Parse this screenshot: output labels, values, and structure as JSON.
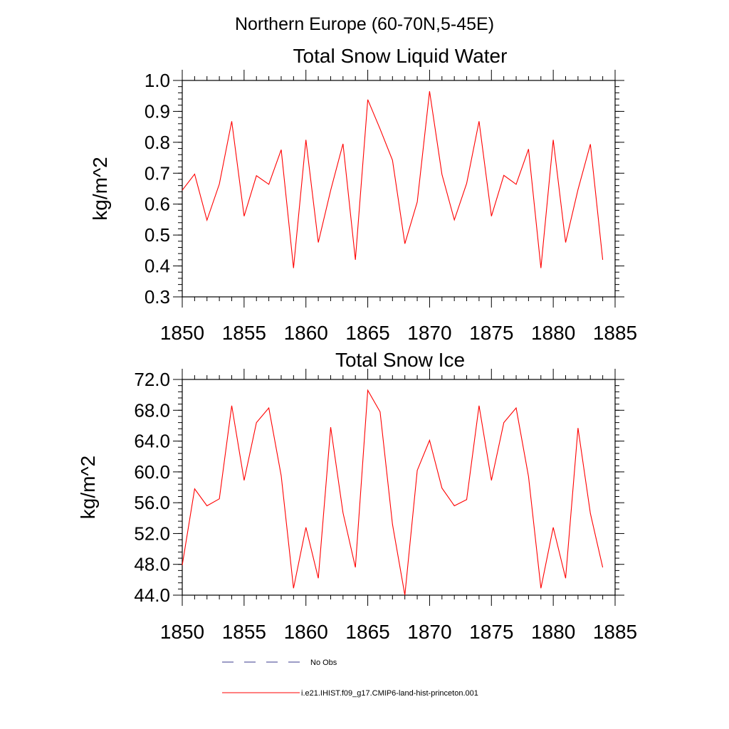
{
  "suptitle": "Northern Europe (60-70N,5-45E)",
  "colors": {
    "model": "#ff0000",
    "obs": "#3a3a8c"
  },
  "legend": [
    {
      "label": "No Obs",
      "style": "dashed",
      "color": "#3a3a8c"
    },
    {
      "label": "i.e21.IHIST.f09_g17.CMIP6-land-hist-princeton.001",
      "style": "solid",
      "color": "#ff0000"
    }
  ],
  "chart_data": [
    {
      "type": "line",
      "title": "Total Snow Liquid Water",
      "ylabel": "kg/m^2",
      "xlabel": "",
      "xlim": [
        1850,
        1885
      ],
      "ylim": [
        0.3,
        1.0
      ],
      "xticks": [
        1850,
        1855,
        1860,
        1865,
        1870,
        1875,
        1880,
        1885
      ],
      "xtick_labels": [
        "1850",
        "1855",
        "1860",
        "1865",
        "1870",
        "1875",
        "1880",
        "1885"
      ],
      "yticks": [
        0.3,
        0.4,
        0.5,
        0.6,
        0.7,
        0.8,
        0.9,
        1.0
      ],
      "ytick_labels": [
        "0.3",
        "0.4",
        "0.5",
        "0.6",
        "0.7",
        "0.8",
        "0.9",
        "1.0"
      ],
      "yminor_step": 0.02,
      "grid": false,
      "x": [
        1850,
        1851,
        1852,
        1853,
        1854,
        1855,
        1856,
        1857,
        1858,
        1859,
        1860,
        1861,
        1862,
        1863,
        1864,
        1865,
        1866,
        1867,
        1868,
        1869,
        1870,
        1871,
        1872,
        1873,
        1874,
        1875,
        1876,
        1877,
        1878,
        1879,
        1880,
        1881,
        1882,
        1883,
        1884
      ],
      "series": [
        {
          "name": "i.e21.IHIST.f09_g17.CMIP6-land-hist-princeton.001",
          "values": [
            0.645,
            0.697,
            0.548,
            0.665,
            0.868,
            0.561,
            0.692,
            0.664,
            0.776,
            0.393,
            0.808,
            0.476,
            0.645,
            0.795,
            0.42,
            0.938,
            0.843,
            0.742,
            0.472,
            0.607,
            0.965,
            0.696,
            0.549,
            0.667,
            0.868,
            0.561,
            0.693,
            0.664,
            0.778,
            0.393,
            0.808,
            0.476,
            0.647,
            0.794,
            0.42
          ]
        }
      ]
    },
    {
      "type": "line",
      "title": "Total Snow Ice",
      "ylabel": "kg/m^2",
      "xlabel": "",
      "xlim": [
        1850,
        1885
      ],
      "ylim": [
        44.0,
        72.0
      ],
      "xticks": [
        1850,
        1855,
        1860,
        1865,
        1870,
        1875,
        1880,
        1885
      ],
      "xtick_labels": [
        "1850",
        "1855",
        "1860",
        "1865",
        "1870",
        "1875",
        "1880",
        "1885"
      ],
      "yticks": [
        44.0,
        48.0,
        52.0,
        56.0,
        60.0,
        64.0,
        68.0,
        72.0
      ],
      "ytick_labels": [
        "44.0",
        "48.0",
        "52.0",
        "56.0",
        "60.0",
        "64.0",
        "68.0",
        "72.0"
      ],
      "yminor_step": 0.8,
      "grid": false,
      "x": [
        1850,
        1851,
        1852,
        1853,
        1854,
        1855,
        1856,
        1857,
        1858,
        1859,
        1860,
        1861,
        1862,
        1863,
        1864,
        1865,
        1866,
        1867,
        1868,
        1869,
        1870,
        1871,
        1872,
        1873,
        1874,
        1875,
        1876,
        1877,
        1878,
        1879,
        1880,
        1881,
        1882,
        1883,
        1884
      ],
      "series": [
        {
          "name": "i.e21.IHIST.f09_g17.CMIP6-land-hist-princeton.001",
          "values": [
            47.9,
            57.8,
            55.6,
            56.5,
            68.6,
            58.9,
            66.4,
            68.3,
            59.5,
            44.9,
            52.8,
            46.2,
            65.8,
            54.7,
            47.6,
            70.6,
            67.8,
            53.2,
            44.0,
            60.2,
            64.1,
            57.9,
            55.6,
            56.4,
            68.6,
            58.9,
            66.4,
            68.3,
            59.4,
            44.9,
            52.8,
            46.2,
            65.7,
            54.6,
            47.6
          ]
        }
      ]
    }
  ]
}
